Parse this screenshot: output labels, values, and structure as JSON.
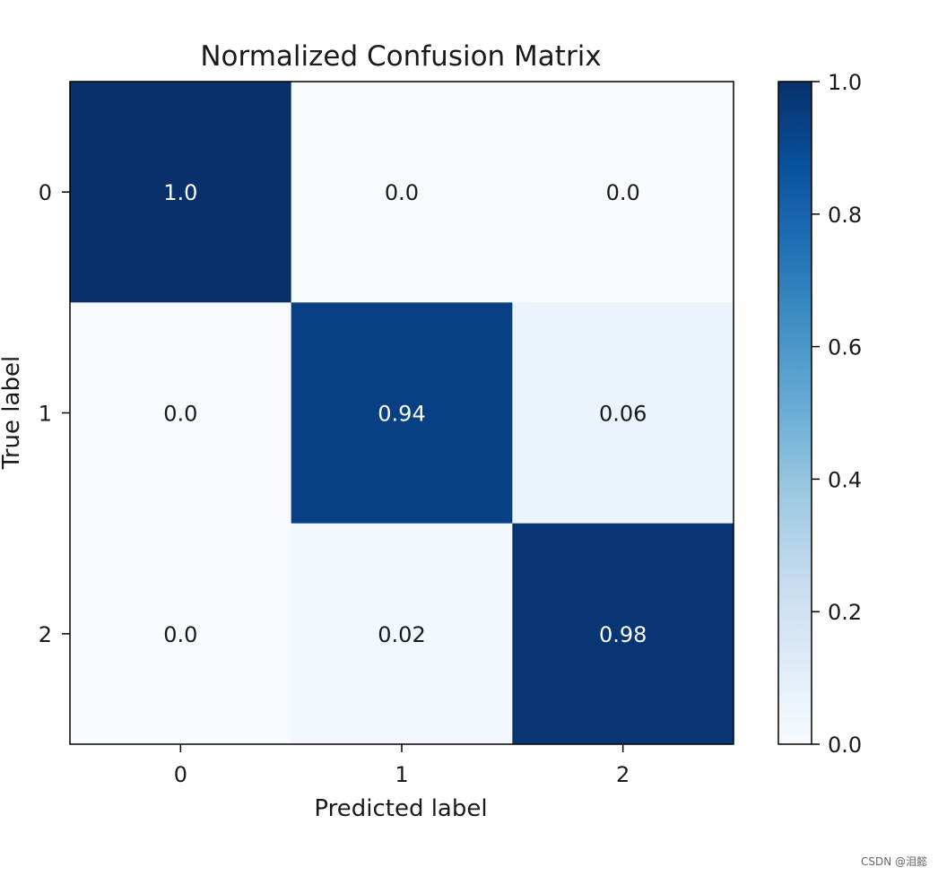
{
  "chart_data": {
    "type": "heatmap",
    "title": "Normalized Confusion Matrix",
    "xlabel": "Predicted label",
    "ylabel": "True label",
    "x_tick_labels": [
      "0",
      "1",
      "2"
    ],
    "y_tick_labels": [
      "0",
      "1",
      "2"
    ],
    "values": [
      [
        1.0,
        0.0,
        0.0
      ],
      [
        0.0,
        0.94,
        0.06
      ],
      [
        0.0,
        0.02,
        0.98
      ]
    ],
    "cell_labels": [
      [
        "1.0",
        "0.0",
        "0.0"
      ],
      [
        "0.0",
        "0.94",
        "0.06"
      ],
      [
        "0.0",
        "0.02",
        "0.98"
      ]
    ],
    "colormap": "Blues",
    "colorbar": {
      "range": [
        0.0,
        1.0
      ],
      "tick_labels": [
        "0.0",
        "0.2",
        "0.4",
        "0.6",
        "0.8",
        "1.0"
      ]
    }
  },
  "watermark": "CSDN @泪懿"
}
